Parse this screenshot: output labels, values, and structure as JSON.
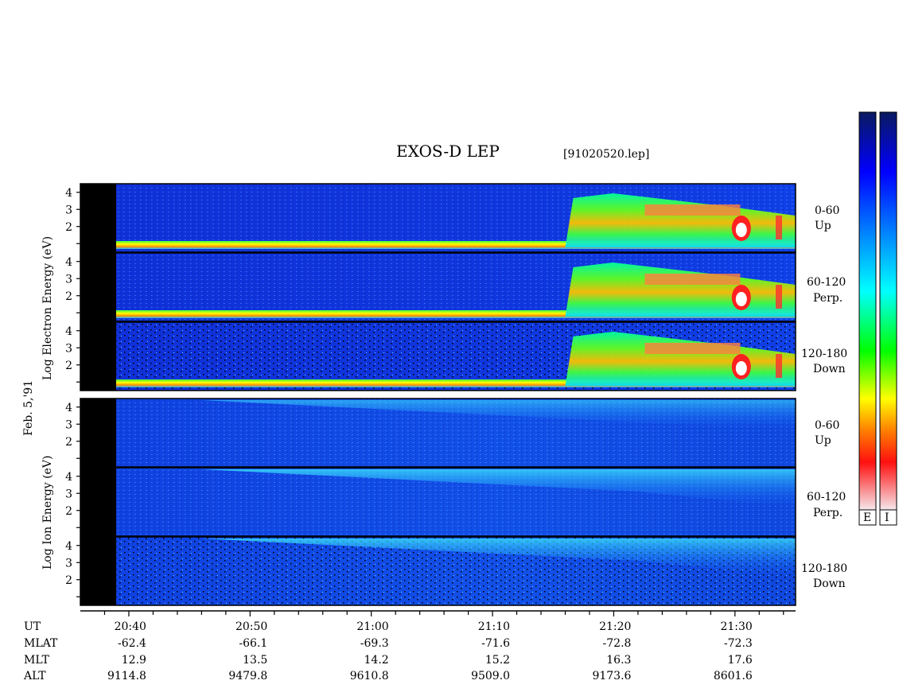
{
  "header": {
    "title": "EXOS-D LEP",
    "filename": "[91020520.lep]"
  },
  "date_label": "Feb. 5,'91",
  "colorbars": {
    "electron_label": "E",
    "ion_label": "I"
  },
  "panels": {
    "electron": {
      "axis_label": "Log  Electron  Energy (eV)",
      "channels": [
        {
          "range": "0-60",
          "dir": "Up"
        },
        {
          "range": "60-120",
          "dir": "Perp."
        },
        {
          "range": "120-180",
          "dir": "Down"
        }
      ]
    },
    "ion": {
      "axis_label": "Log  Ion  Energy (eV)",
      "channels": [
        {
          "range": "0-60",
          "dir": "Up"
        },
        {
          "range": "60-120",
          "dir": "Perp."
        },
        {
          "range": "120-180",
          "dir": "Down"
        }
      ]
    }
  },
  "ephemeris": {
    "row_labels": [
      "UT",
      "MLAT",
      "MLT",
      "ALT"
    ],
    "columns": [
      {
        "ut": "20:40",
        "mlat": "-62.4",
        "mlt": "12.9",
        "alt": "9114.8"
      },
      {
        "ut": "20:50",
        "mlat": "-66.1",
        "mlt": "13.5",
        "alt": "9479.8"
      },
      {
        "ut": "21:00",
        "mlat": "-69.3",
        "mlt": "14.2",
        "alt": "9610.8"
      },
      {
        "ut": "21:10",
        "mlat": "-71.6",
        "mlt": "15.2",
        "alt": "9509.0"
      },
      {
        "ut": "21:20",
        "mlat": "-72.8",
        "mlt": "16.3",
        "alt": "9173.6"
      },
      {
        "ut": "21:30",
        "mlat": "-72.3",
        "mlt": "17.6",
        "alt": "8601.6"
      }
    ]
  },
  "chart_data": {
    "type": "heatmap",
    "title": "EXOS-D LEP",
    "subtitle": "[91020520.lep]",
    "x_axis": {
      "label": "UT",
      "ticks": [
        "20:40",
        "20:50",
        "21:00",
        "21:10",
        "21:20",
        "21:30"
      ],
      "minor_tick_interval_min": 2
    },
    "y_axis": {
      "label": "Log Energy (eV)",
      "ticks": [
        1,
        2,
        3,
        4
      ],
      "tick_labels": [
        "2",
        "3",
        "4"
      ]
    },
    "colormap": [
      "#f5e8ec",
      "#ff1010",
      "#ff8000",
      "#ffff00",
      "#00ff00",
      "#00ffff",
      "#0080ff",
      "#0000ff",
      "#0a1a60"
    ],
    "series": [
      {
        "name": "Electron 0-60 Up"
      },
      {
        "name": "Electron 60-120 Perp."
      },
      {
        "name": "Electron 120-180 Down"
      },
      {
        "name": "Ion 0-60 Up"
      },
      {
        "name": "Ion 60-120 Perp."
      },
      {
        "name": "Ion 120-180 Down"
      }
    ]
  }
}
